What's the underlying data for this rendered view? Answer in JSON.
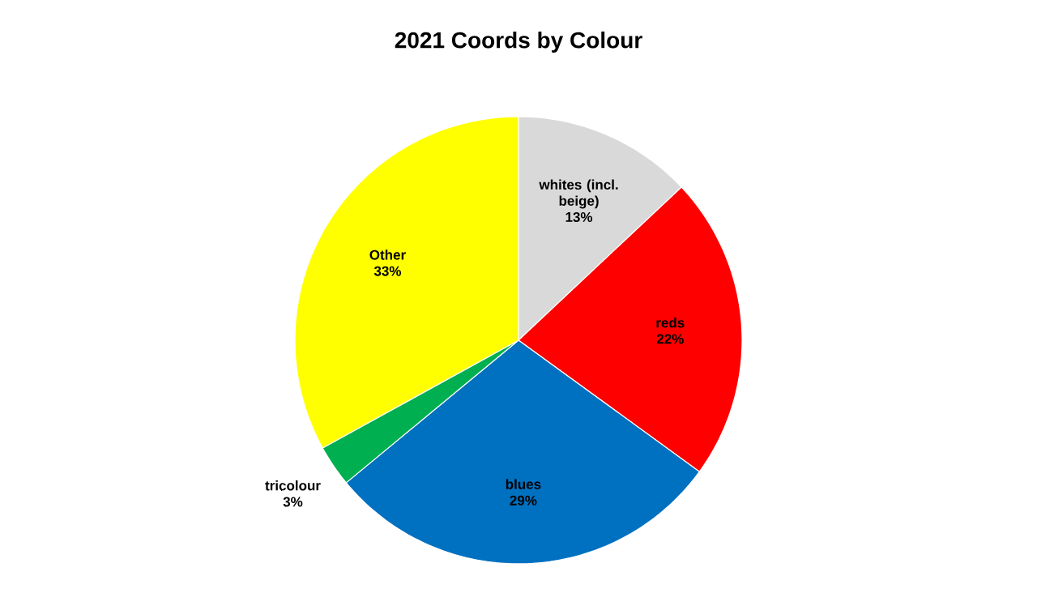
{
  "chart_data": {
    "type": "pie",
    "title": "2021 Coords by Colour",
    "categories": [
      "whites (incl. beige)",
      "reds",
      "blues",
      "tricolour",
      "Other"
    ],
    "values": [
      13,
      22,
      29,
      3,
      33
    ],
    "colors": [
      "#d9d9d9",
      "#ff0000",
      "#0070c0",
      "#00b050",
      "#ffff00"
    ],
    "value_labels": [
      "13%",
      "22%",
      "29%",
      "3%",
      "33%"
    ]
  }
}
